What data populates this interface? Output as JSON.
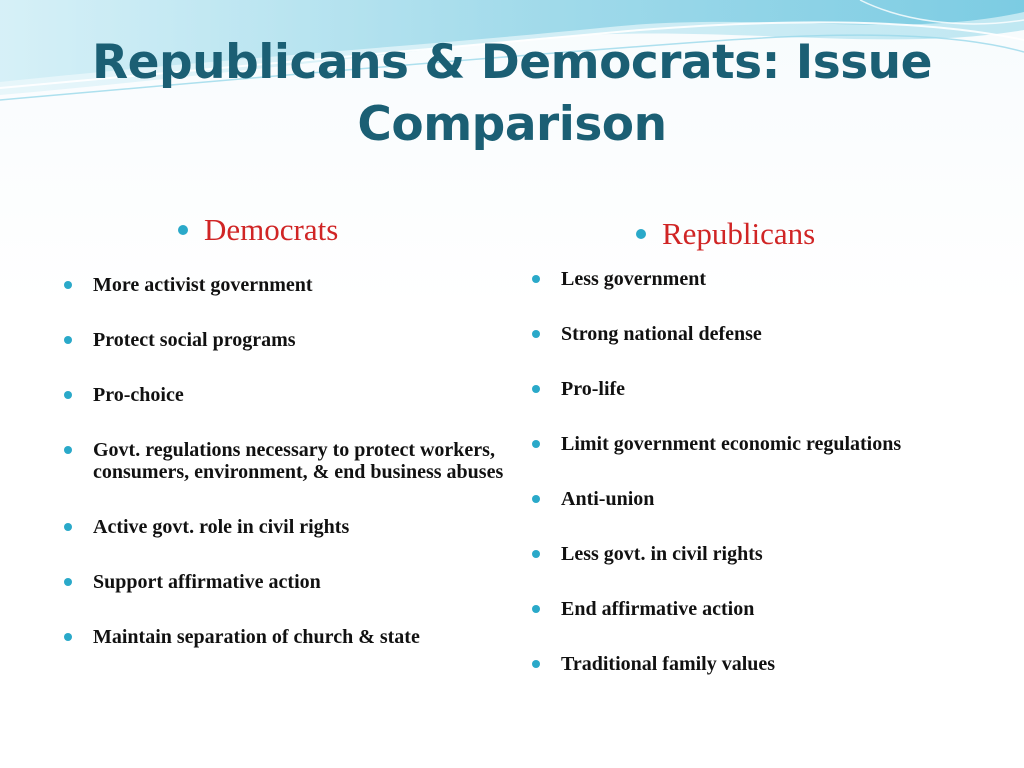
{
  "slide": {
    "title": "Republicans & Democrats: Issue Comparison",
    "accent_color": "#1b5f74",
    "bullet_color": "#2aa9c9",
    "heading_color": "#d02525"
  },
  "democrats": {
    "heading": "Democrats",
    "items": [
      "More activist government",
      "Protect social programs",
      "Pro-choice",
      "Govt. regulations necessary to protect workers, consumers, environment, & end business abuses",
      "Active govt. role in civil rights",
      "Support affirmative action",
      "Maintain separation of church & state"
    ]
  },
  "republicans": {
    "heading": "Republicans",
    "items": [
      "Less government",
      "Strong national defense",
      "Pro-life",
      "Limit government economic regulations",
      "Anti-union",
      "Less govt. in civil rights",
      "End affirmative action",
      "Traditional family values"
    ]
  }
}
